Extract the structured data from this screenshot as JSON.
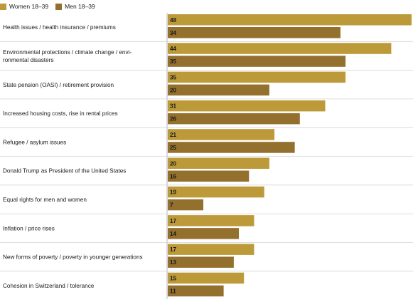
{
  "chart_data": {
    "type": "bar",
    "orientation": "horizontal",
    "categories": [
      "Health issues / health insurance / premiums",
      [
        "Environmental protections / climate change / envi-",
        "ronmental disasters"
      ],
      "State pension (OASI) / retirement provision",
      "Increased housing costs, rise in rental prices",
      "Refugee / asylum issues",
      "Donald Trump as President of the United States",
      "Equal rights for men and women",
      "Inflation / price rises",
      "New forms of poverty / poverty in younger generations",
      "Cohesion in Switzerland / tolerance"
    ],
    "series": [
      {
        "name": "Women 18–39",
        "color": "#bd9a39",
        "values": [
          48,
          44,
          35,
          31,
          21,
          20,
          19,
          17,
          17,
          15
        ]
      },
      {
        "name": "Men 18–39",
        "color": "#94702e",
        "values": [
          34,
          35,
          20,
          26,
          25,
          16,
          7,
          14,
          13,
          11
        ]
      }
    ],
    "xlim": [
      0,
      48
    ],
    "legend": "top-left",
    "grid": false
  }
}
